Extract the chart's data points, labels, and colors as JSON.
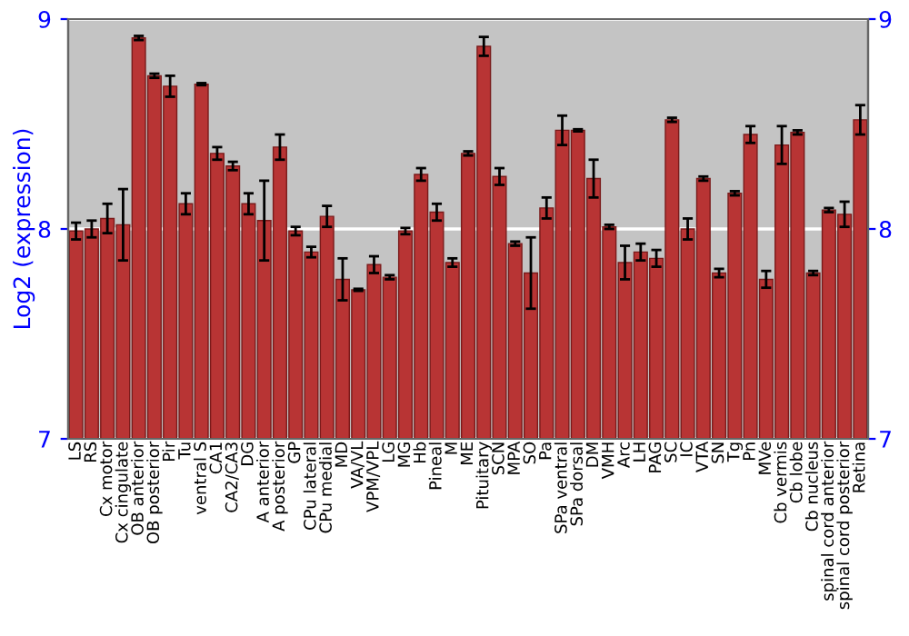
{
  "chart_data": {
    "type": "bar",
    "ylabel": "Log2 (expression)",
    "categories": [
      "LS",
      "RS",
      "Cx motor",
      "Cx cingulate",
      "OB anterior",
      "OB posterior",
      "Pir",
      "Tu",
      "ventral S",
      "CA1",
      "CA2/CA3",
      "DG",
      "A anterior",
      "A posterior",
      "GP",
      "CPu lateral",
      "CPu medial",
      "MD",
      "VA/VL",
      "VPM/VPL",
      "LG",
      "MG",
      "Hb",
      "Pineal",
      "M",
      "ME",
      "Pituitary",
      "SCN",
      "MPA",
      "SO",
      "Pa",
      "SPa ventral",
      "SPa dorsal",
      "DM",
      "VMH",
      "Arc",
      "LH",
      "PAG",
      "SC",
      "IC",
      "VTA",
      "SN",
      "Tg",
      "Pn",
      "MVe",
      "Cb vermis",
      "Cb lobe",
      "Cb nucleus",
      "spinal cord anterior",
      "spinal cord posterior",
      "Retina"
    ],
    "values": [
      7.99,
      8.0,
      8.05,
      8.02,
      8.91,
      8.73,
      8.68,
      8.12,
      8.69,
      8.36,
      8.3,
      8.12,
      8.04,
      8.39,
      7.99,
      7.89,
      8.06,
      7.76,
      7.71,
      7.83,
      7.77,
      7.99,
      8.26,
      8.08,
      7.84,
      8.36,
      8.87,
      8.25,
      7.93,
      7.79,
      8.1,
      8.47,
      8.47,
      8.24,
      8.01,
      7.84,
      7.89,
      7.86,
      8.52,
      8.0,
      8.24,
      7.79,
      8.17,
      8.45,
      7.76,
      8.4,
      8.46,
      7.79,
      8.09,
      8.07,
      8.52
    ],
    "errors": [
      0.04,
      0.04,
      0.07,
      0.17,
      0.01,
      0.01,
      0.05,
      0.05,
      0.005,
      0.03,
      0.02,
      0.05,
      0.19,
      0.06,
      0.02,
      0.025,
      0.05,
      0.1,
      0.005,
      0.04,
      0.01,
      0.015,
      0.03,
      0.04,
      0.02,
      0.01,
      0.045,
      0.04,
      0.01,
      0.17,
      0.05,
      0.07,
      0.005,
      0.09,
      0.01,
      0.08,
      0.04,
      0.04,
      0.01,
      0.05,
      0.01,
      0.02,
      0.01,
      0.04,
      0.04,
      0.09,
      0.01,
      0.01,
      0.01,
      0.06,
      0.07
    ],
    "color": "#b83434",
    "ylim": [
      7,
      9
    ],
    "yticks": [
      7,
      8,
      9
    ],
    "y2lim": [
      7,
      9
    ],
    "y2ticks": [
      7,
      8,
      9
    ],
    "grid": "y"
  }
}
